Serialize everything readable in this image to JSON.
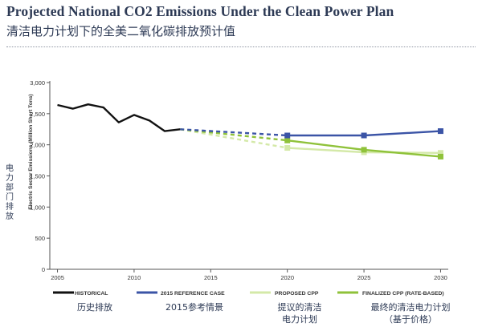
{
  "header": {
    "title_en": "Projected National CO2 Emissions Under the Clean Power Plan",
    "title_zh": "清洁电力计划下的全美二氧化碳排放预计值"
  },
  "colors": {
    "historical": "#111111",
    "reference": "#3b54a6",
    "proposed": "#d4e9a8",
    "finalized": "#8fc23a",
    "axis": "#555555",
    "title": "#2d3a55"
  },
  "chart_data": {
    "type": "line",
    "title": "Projected National CO2 Emissions Under the Clean Power Plan",
    "ylabel": "Electric Sector Emissions (Million Short Tons)",
    "ylabel_zh": [
      "电",
      "力",
      "部",
      "门",
      "排",
      "放"
    ],
    "xlim": [
      2004.5,
      2030.5
    ],
    "ylim": [
      0,
      3000
    ],
    "yticks": [
      0,
      500,
      1000,
      1500,
      2000,
      2500,
      3000
    ],
    "ytick_labels": [
      "0",
      "500",
      "1,000",
      "1,500",
      "2,000",
      "2,500",
      "3,000"
    ],
    "xticks": [
      2005,
      2010,
      2015,
      2020,
      2025,
      2030
    ],
    "xtick_labels": [
      "2005",
      "2010",
      "2015",
      "2020",
      "2025",
      "2030"
    ],
    "grid": false,
    "legend_position": "bottom",
    "series": [
      {
        "name": "HISTORICAL",
        "name_zh": "历史排放",
        "style": "solid",
        "x": [
          2005,
          2006,
          2007,
          2008,
          2009,
          2010,
          2011,
          2012,
          2013
        ],
        "y": [
          2640,
          2580,
          2650,
          2600,
          2360,
          2480,
          2390,
          2220,
          2250
        ],
        "markers": false
      },
      {
        "name": "2015 REFERENCE CASE",
        "name_zh": "2015参考情景",
        "segments": [
          {
            "style": "dashed",
            "x": [
              2013,
              2020
            ],
            "y": [
              2250,
              2150
            ],
            "markers": false
          },
          {
            "style": "solid",
            "x": [
              2020,
              2025,
              2030
            ],
            "y": [
              2150,
              2150,
              2220
            ],
            "markers": true
          }
        ]
      },
      {
        "name": "PROPOSED CPP",
        "name_zh": [
          "提议的清洁",
          "电力计划"
        ],
        "segments": [
          {
            "style": "dashed",
            "x": [
              2013,
              2020
            ],
            "y": [
              2250,
              1950
            ],
            "markers": false
          },
          {
            "style": "solid",
            "x": [
              2020,
              2025,
              2030
            ],
            "y": [
              1950,
              1880,
              1870
            ],
            "markers": true
          }
        ]
      },
      {
        "name": "FINALIZED CPP (RATE-BASED)",
        "name_zh": [
          "最终的清洁电力计划",
          "（基于价格）"
        ],
        "segments": [
          {
            "style": "dashed",
            "x": [
              2013,
              2020
            ],
            "y": [
              2250,
              2070
            ],
            "markers": false
          },
          {
            "style": "solid",
            "x": [
              2020,
              2025,
              2030
            ],
            "y": [
              2070,
              1920,
              1810
            ],
            "markers": true
          }
        ]
      }
    ]
  }
}
